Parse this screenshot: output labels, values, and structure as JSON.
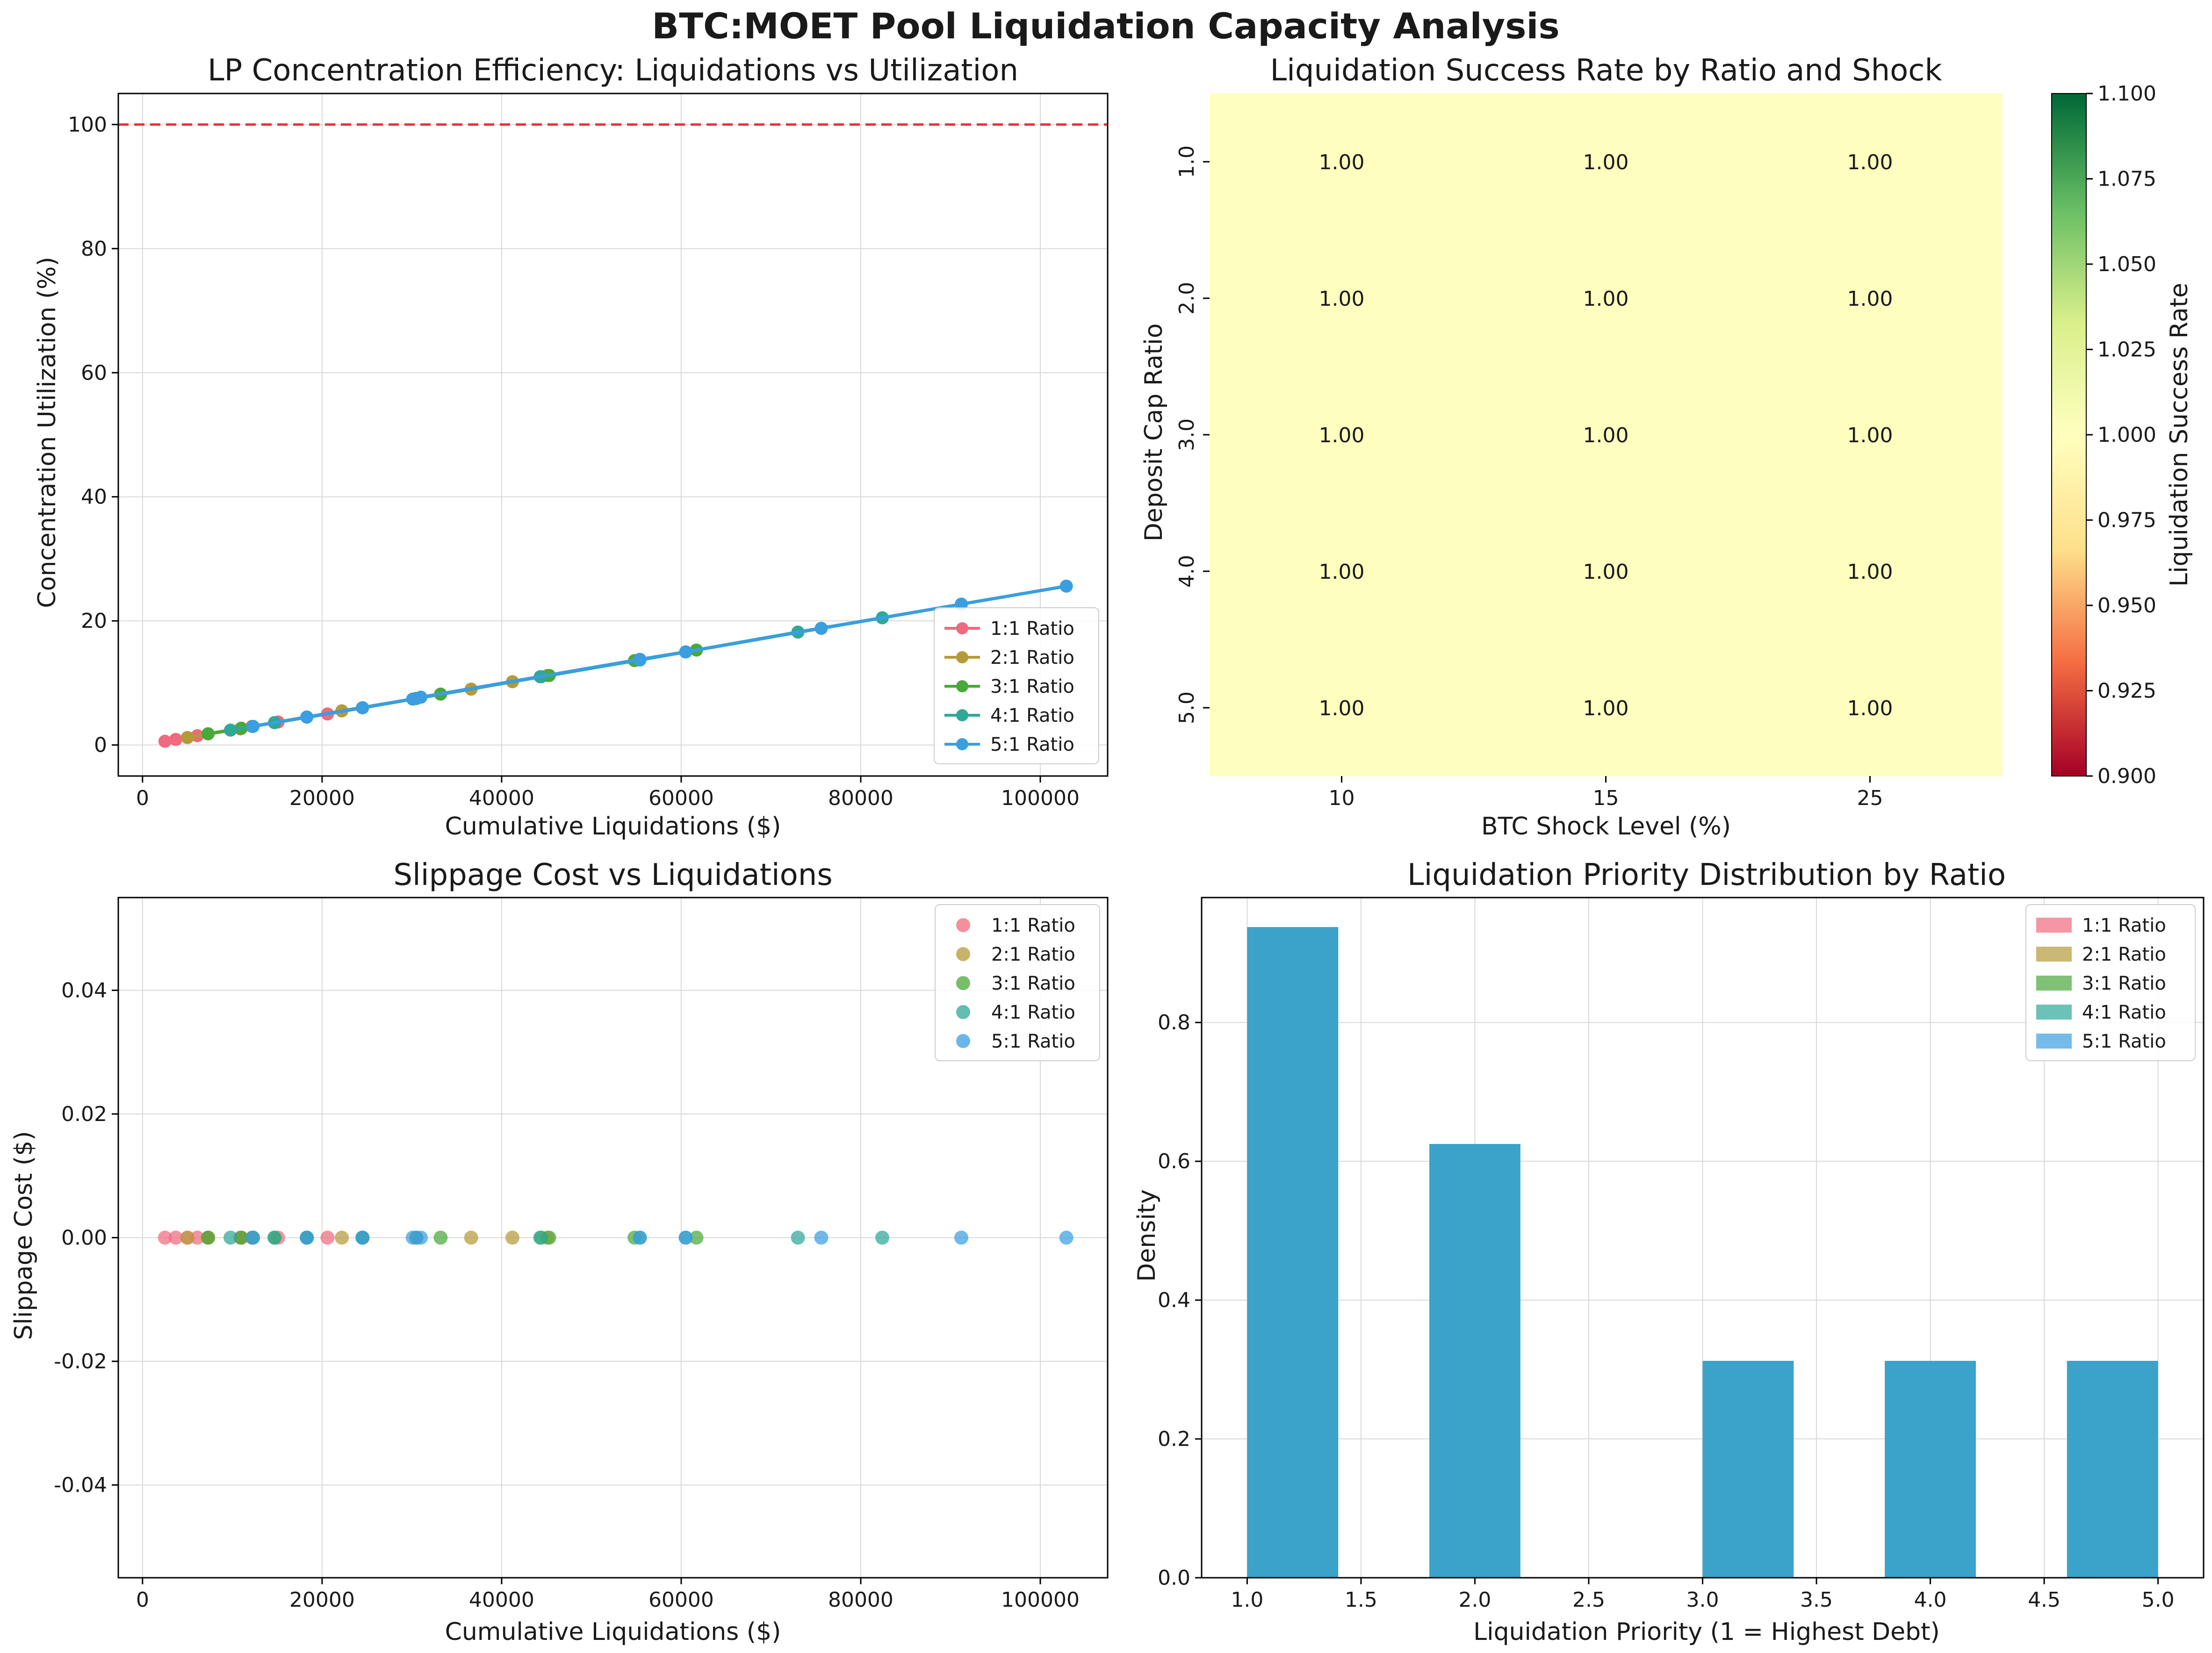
{
  "figure": {
    "title": "BTC:MOET Pool Liquidation Capacity Analysis"
  },
  "colors": {
    "ratio_1": "#f0697d",
    "ratio_2": "#b59a3a",
    "ratio_3": "#4aa83a",
    "ratio_4": "#2ea897",
    "ratio_5": "#3a9ee0",
    "threshold_line": "#e83030",
    "hist_overlap": "#3ba2c9"
  },
  "chart_data": [
    {
      "type": "line",
      "title": "LP Concentration Efficiency: Liquidations vs Utilization",
      "xlabel": "Cumulative Liquidations ($)",
      "ylabel": "Concentration Utilization (%)",
      "xlim": [
        -2700,
        107500
      ],
      "ylim": [
        -5,
        105
      ],
      "xticks": [
        0,
        20000,
        40000,
        60000,
        80000,
        100000
      ],
      "yticks": [
        0,
        20,
        40,
        60,
        80,
        100
      ],
      "grid": true,
      "legend": "lower-right",
      "reference_line": {
        "orientation": "horizontal",
        "y": 100,
        "style": "dashed"
      },
      "series": [
        {
          "name": "1:1 Ratio",
          "color_key": "ratio_1",
          "x": [
            2500,
            3700,
            5000,
            6100,
            7300,
            10900,
            12200,
            15100,
            20600,
            24500
          ],
          "y": [
            0.6,
            0.9,
            1.2,
            1.5,
            1.8,
            2.6,
            3.0,
            3.7,
            5.0,
            6.0
          ]
        },
        {
          "name": "2:1 Ratio",
          "color_key": "ratio_2",
          "x": [
            5000,
            7300,
            11000,
            12300,
            18300,
            22200,
            30500,
            36600,
            41200,
            45100
          ],
          "y": [
            1.2,
            1.8,
            2.7,
            3.0,
            4.5,
            5.5,
            7.5,
            9.0,
            10.2,
            11.2
          ]
        },
        {
          "name": "3:1 Ratio",
          "color_key": "ratio_3",
          "x": [
            7300,
            11000,
            14700,
            18300,
            24500,
            33200,
            44400,
            45300,
            54800,
            61700
          ],
          "y": [
            1.8,
            2.7,
            3.6,
            4.5,
            6.0,
            8.2,
            11.0,
            11.2,
            13.6,
            15.3
          ]
        },
        {
          "name": "4:1 Ratio",
          "color_key": "ratio_4",
          "x": [
            9800,
            12300,
            14700,
            18300,
            24500,
            30500,
            44300,
            55400,
            60500,
            73000,
            82400
          ],
          "y": [
            2.4,
            3.0,
            3.6,
            4.5,
            6.0,
            7.5,
            11.0,
            13.7,
            15.0,
            18.2,
            20.5
          ]
        },
        {
          "name": "5:1 Ratio",
          "color_key": "ratio_5",
          "x": [
            12300,
            18300,
            24500,
            30100,
            31000,
            55400,
            60500,
            75600,
            91200,
            102900
          ],
          "y": [
            3.0,
            4.5,
            6.0,
            7.4,
            7.7,
            13.8,
            15.0,
            18.8,
            22.7,
            25.6
          ]
        }
      ]
    },
    {
      "type": "heatmap",
      "title": "Liquidation Success Rate by Ratio and Shock",
      "xlabel": "BTC Shock Level (%)",
      "ylabel": "Deposit Cap Ratio",
      "x_categories": [
        "10",
        "15",
        "25"
      ],
      "y_categories": [
        "1.0",
        "2.0",
        "3.0",
        "4.0",
        "5.0"
      ],
      "values": [
        [
          1.0,
          1.0,
          1.0
        ],
        [
          1.0,
          1.0,
          1.0
        ],
        [
          1.0,
          1.0,
          1.0
        ],
        [
          1.0,
          1.0,
          1.0
        ],
        [
          1.0,
          1.0,
          1.0
        ]
      ],
      "cell_labels": [
        [
          "1.00",
          "1.00",
          "1.00"
        ],
        [
          "1.00",
          "1.00",
          "1.00"
        ],
        [
          "1.00",
          "1.00",
          "1.00"
        ],
        [
          "1.00",
          "1.00",
          "1.00"
        ],
        [
          "1.00",
          "1.00",
          "1.00"
        ]
      ],
      "cell_color": "#fefebe",
      "colormap": "RdYlGn",
      "colormap_stops": [
        "#a50026",
        "#f46d43",
        "#fee08b",
        "#ffffbf",
        "#d9ef8b",
        "#66bd63",
        "#006837"
      ],
      "colorbar": {
        "label": "Liquidation Success Rate",
        "range": [
          0.9,
          1.1
        ],
        "ticks": [
          "0.900",
          "0.925",
          "0.950",
          "0.975",
          "1.000",
          "1.025",
          "1.050",
          "1.075",
          "1.100"
        ]
      }
    },
    {
      "type": "scatter",
      "title": "Slippage Cost vs Liquidations",
      "xlabel": "Cumulative Liquidations ($)",
      "ylabel": "Slippage Cost ($)",
      "xlim": [
        -2700,
        107500
      ],
      "ylim": [
        -0.055,
        0.055
      ],
      "xticks": [
        0,
        20000,
        40000,
        60000,
        80000,
        100000
      ],
      "yticks": [
        "-0.04",
        "-0.02",
        "0.00",
        "0.02",
        "0.04"
      ],
      "ytick_values": [
        -0.04,
        -0.02,
        0,
        0.02,
        0.04
      ],
      "grid": true,
      "legend": "upper-right",
      "series": [
        {
          "name": "1:1 Ratio",
          "color_key": "ratio_1",
          "x": [
            2500,
            3700,
            5000,
            6100,
            7300,
            10900,
            12200,
            15100,
            20600,
            24500
          ],
          "y": [
            0,
            0,
            0,
            0,
            0,
            0,
            0,
            0,
            0,
            0
          ]
        },
        {
          "name": "2:1 Ratio",
          "color_key": "ratio_2",
          "x": [
            5000,
            7300,
            11000,
            12300,
            18300,
            22200,
            30500,
            36600,
            41200,
            45100
          ],
          "y": [
            0,
            0,
            0,
            0,
            0,
            0,
            0,
            0,
            0,
            0
          ]
        },
        {
          "name": "3:1 Ratio",
          "color_key": "ratio_3",
          "x": [
            7300,
            11000,
            14700,
            18300,
            24500,
            33200,
            44400,
            45300,
            54800,
            61700
          ],
          "y": [
            0,
            0,
            0,
            0,
            0,
            0,
            0,
            0,
            0,
            0
          ]
        },
        {
          "name": "4:1 Ratio",
          "color_key": "ratio_4",
          "x": [
            9800,
            12300,
            14700,
            18300,
            24500,
            30500,
            44300,
            55400,
            60500,
            73000,
            82400
          ],
          "y": [
            0,
            0,
            0,
            0,
            0,
            0,
            0,
            0,
            0,
            0,
            0
          ]
        },
        {
          "name": "5:1 Ratio",
          "color_key": "ratio_5",
          "x": [
            12300,
            18300,
            24500,
            30100,
            31000,
            55400,
            60500,
            75600,
            91200,
            102900
          ],
          "y": [
            0,
            0,
            0,
            0,
            0,
            0,
            0,
            0,
            0,
            0
          ]
        }
      ]
    },
    {
      "type": "bar",
      "subtype": "histogram",
      "title": "Liquidation Priority Distribution by Ratio",
      "xlabel": "Liquidation Priority (1 = Highest Debt)",
      "ylabel": "Density",
      "xlim": [
        0.8,
        5.2
      ],
      "ylim": [
        0,
        0.98
      ],
      "xticks": [
        "1.0",
        "1.5",
        "2.0",
        "2.5",
        "3.0",
        "3.5",
        "4.0",
        "4.5",
        "5.0"
      ],
      "xtick_values": [
        1.0,
        1.5,
        2.0,
        2.5,
        3.0,
        3.5,
        4.0,
        4.5,
        5.0
      ],
      "yticks": [
        "0.0",
        "0.2",
        "0.4",
        "0.6",
        "0.8"
      ],
      "ytick_values": [
        0,
        0.2,
        0.4,
        0.6,
        0.8
      ],
      "grid": true,
      "legend": "upper-right",
      "bins": [
        {
          "x0": 1.0,
          "x1": 1.4,
          "density": 0.9375
        },
        {
          "x0": 1.8,
          "x1": 2.2,
          "density": 0.625
        },
        {
          "x0": 3.0,
          "x1": 3.4,
          "density": 0.3125
        },
        {
          "x0": 3.8,
          "x1": 4.2,
          "density": 0.3125
        },
        {
          "x0": 4.6,
          "x1": 5.0,
          "density": 0.3125
        }
      ],
      "series": [
        {
          "name": "1:1 Ratio",
          "color_key": "ratio_1"
        },
        {
          "name": "2:1 Ratio",
          "color_key": "ratio_2"
        },
        {
          "name": "3:1 Ratio",
          "color_key": "ratio_3"
        },
        {
          "name": "4:1 Ratio",
          "color_key": "ratio_4"
        },
        {
          "name": "5:1 Ratio",
          "color_key": "ratio_5"
        }
      ]
    }
  ]
}
